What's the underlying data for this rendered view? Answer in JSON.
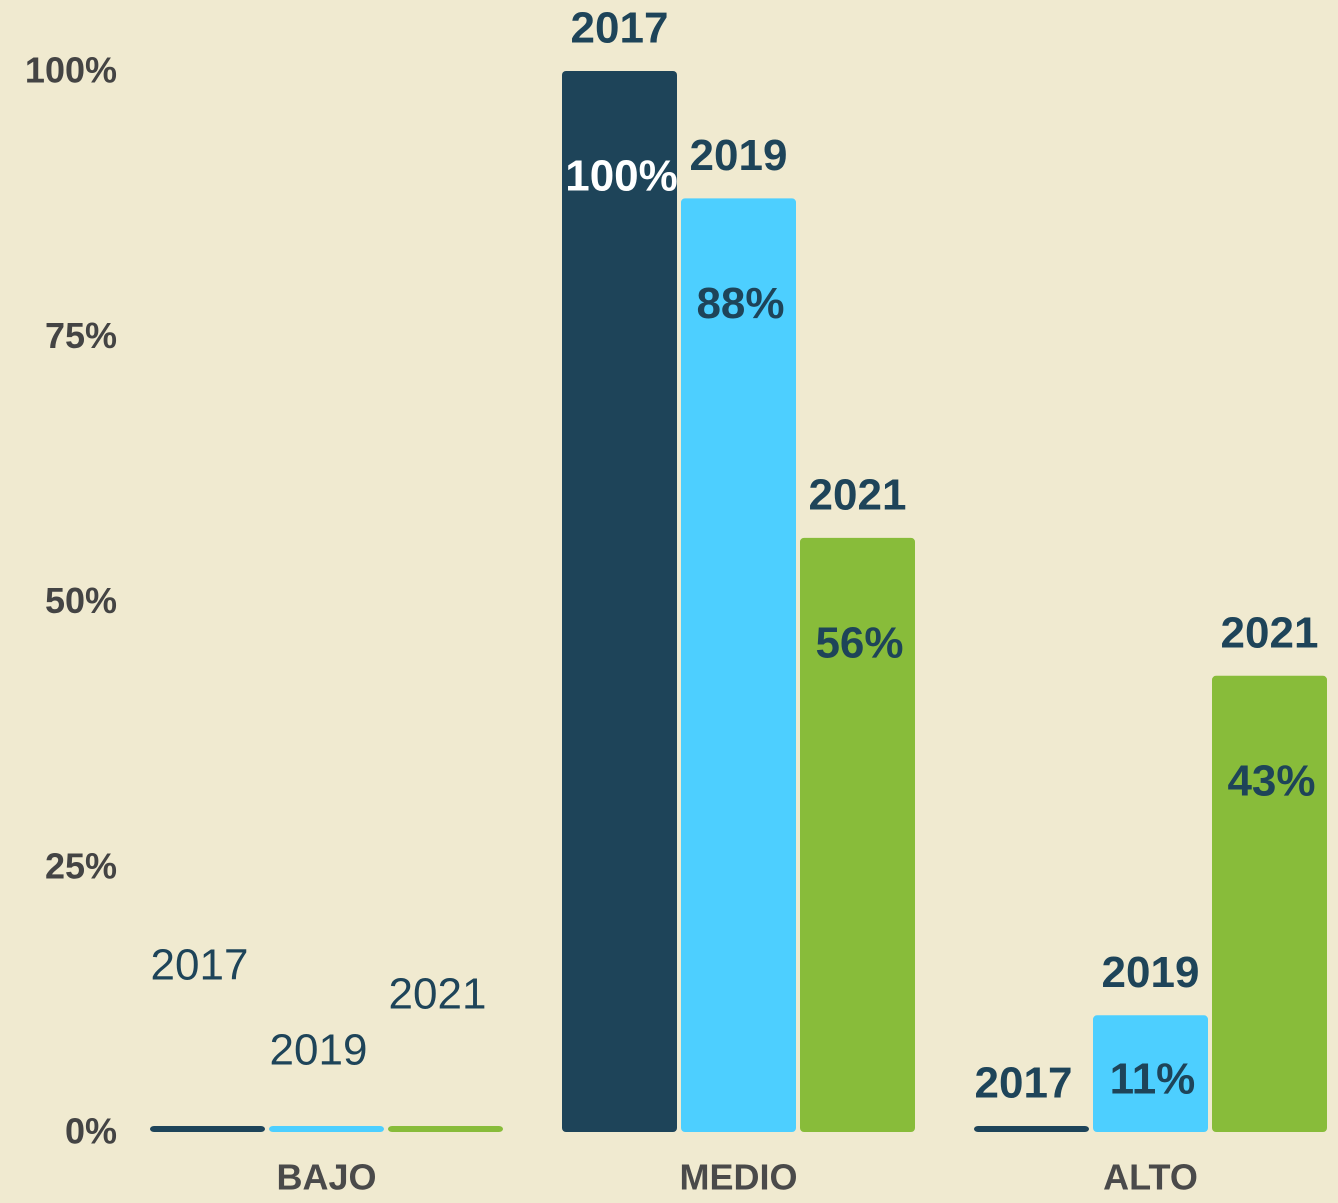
{
  "chart_data": {
    "type": "bar",
    "categories": [
      "BAJO",
      "MEDIO",
      "ALTO"
    ],
    "series": [
      {
        "name": "2017",
        "color": "#1e4459",
        "values": [
          0,
          100,
          0
        ],
        "value_labels": [
          null,
          "100%",
          null
        ]
      },
      {
        "name": "2019",
        "color": "#4dcfff",
        "values": [
          0,
          88,
          11
        ],
        "value_labels": [
          null,
          "88%",
          "11%"
        ]
      },
      {
        "name": "2021",
        "color": "#88bc3a",
        "values": [
          0,
          56,
          43
        ],
        "value_labels": [
          null,
          "56%",
          "43%"
        ]
      }
    ],
    "ylim": [
      0,
      100
    ],
    "yticks": [
      {
        "value": 0,
        "label": "0%"
      },
      {
        "value": 25,
        "label": "25%"
      },
      {
        "value": 50,
        "label": "50%"
      },
      {
        "value": 75,
        "label": "75%"
      },
      {
        "value": 100,
        "label": "100%"
      }
    ],
    "grid": false
  }
}
